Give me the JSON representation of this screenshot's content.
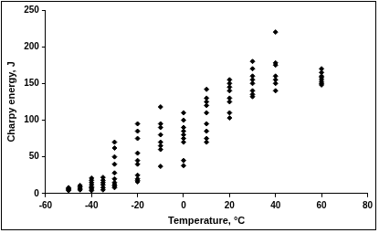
{
  "chart_data": {
    "type": "scatter",
    "x_label": "Temperature, °C",
    "y_label": "Charpy energy, J",
    "x": [
      -50,
      -50,
      -50,
      -50,
      -50,
      -45,
      -45,
      -45,
      -45,
      -40,
      -40,
      -40,
      -40,
      -40,
      -40,
      -40,
      -40,
      -35,
      -35,
      -35,
      -35,
      -35,
      -35,
      -30,
      -30,
      -30,
      -30,
      -30,
      -30,
      -30,
      -30,
      -30,
      -30,
      -20,
      -20,
      -20,
      -20,
      -20,
      -20,
      -20,
      -20,
      -20,
      -20,
      -10,
      -10,
      -10,
      -10,
      -10,
      -10,
      -10,
      -10,
      0,
      0,
      0,
      0,
      0,
      0,
      0,
      0,
      0,
      10,
      10,
      10,
      10,
      10,
      10,
      10,
      10,
      10,
      20,
      20,
      20,
      20,
      20,
      20,
      20,
      20,
      30,
      30,
      30,
      30,
      30,
      30,
      30,
      30,
      40,
      40,
      40,
      40,
      40,
      40,
      40,
      60,
      60,
      60,
      60,
      60,
      60,
      60,
      60
    ],
    "values": [
      4,
      5,
      6,
      7,
      8,
      5,
      7,
      9,
      11,
      4,
      6,
      8,
      9,
      12,
      15,
      18,
      21,
      5,
      8,
      12,
      15,
      18,
      22,
      70,
      62,
      50,
      40,
      28,
      20,
      15,
      12,
      10,
      8,
      95,
      85,
      75,
      55,
      45,
      40,
      25,
      20,
      18,
      16,
      118,
      95,
      90,
      80,
      70,
      65,
      60,
      37,
      110,
      100,
      90,
      85,
      80,
      75,
      70,
      45,
      38,
      142,
      130,
      125,
      120,
      110,
      95,
      85,
      75,
      70,
      155,
      150,
      145,
      140,
      130,
      125,
      110,
      103,
      180,
      170,
      160,
      155,
      150,
      140,
      135,
      132,
      220,
      178,
      175,
      160,
      155,
      150,
      140,
      170,
      165,
      160,
      158,
      155,
      152,
      150,
      148
    ],
    "color": "#000000",
    "marker": "diamond",
    "xlim": [
      -60,
      80
    ],
    "xticks": [
      -60,
      -40,
      -20,
      0,
      20,
      40,
      60,
      80
    ],
    "ylim": [
      0,
      250
    ],
    "yticks": [
      0,
      50,
      100,
      150,
      200,
      250
    ],
    "grid": false
  }
}
